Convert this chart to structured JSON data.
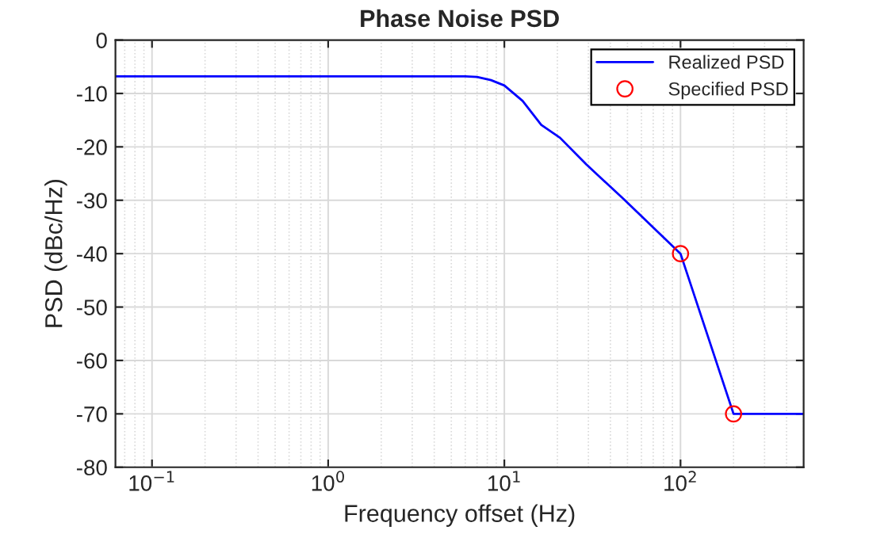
{
  "chart_data": {
    "type": "line",
    "title": "Phase Noise PSD",
    "xlabel": "Frequency offset (Hz)",
    "ylabel": "PSD (dBc/Hz)",
    "log": "x",
    "xlim": [
      0.062,
      500
    ],
    "ylim": [
      -80,
      0
    ],
    "xticks": [
      {
        "value": 0.1,
        "label": "10$^{−1}$"
      },
      {
        "value": 1,
        "label": "10$^{0}$"
      },
      {
        "value": 10,
        "label": "10$^{1}$"
      },
      {
        "value": 100,
        "label": "10$^{2}$"
      }
    ],
    "yticks": [
      -80,
      -70,
      -60,
      -50,
      -40,
      -30,
      -20,
      -10,
      0
    ],
    "grid": true,
    "legend": "top right",
    "series": [
      {
        "name": "Realized PSD",
        "color": "#0000ff",
        "marker": "none",
        "x": [
          0.062,
          1,
          5,
          6,
          7,
          8.4,
          10,
          12.7,
          16.2,
          20.7,
          29.2,
          47.3,
          100,
          200,
          500
        ],
        "values": [
          -6.8,
          -6.8,
          -6.8,
          -6.8,
          -6.9,
          -7.5,
          -8.5,
          -11.4,
          -15.9,
          -18.3,
          -23.3,
          -29.7,
          -40,
          -70,
          -70
        ]
      },
      {
        "name": "Specified PSD",
        "type": "scatter",
        "color": "#ff0000",
        "marker": "circle",
        "x": [
          100,
          200
        ],
        "values": [
          -40,
          -70
        ]
      }
    ]
  }
}
